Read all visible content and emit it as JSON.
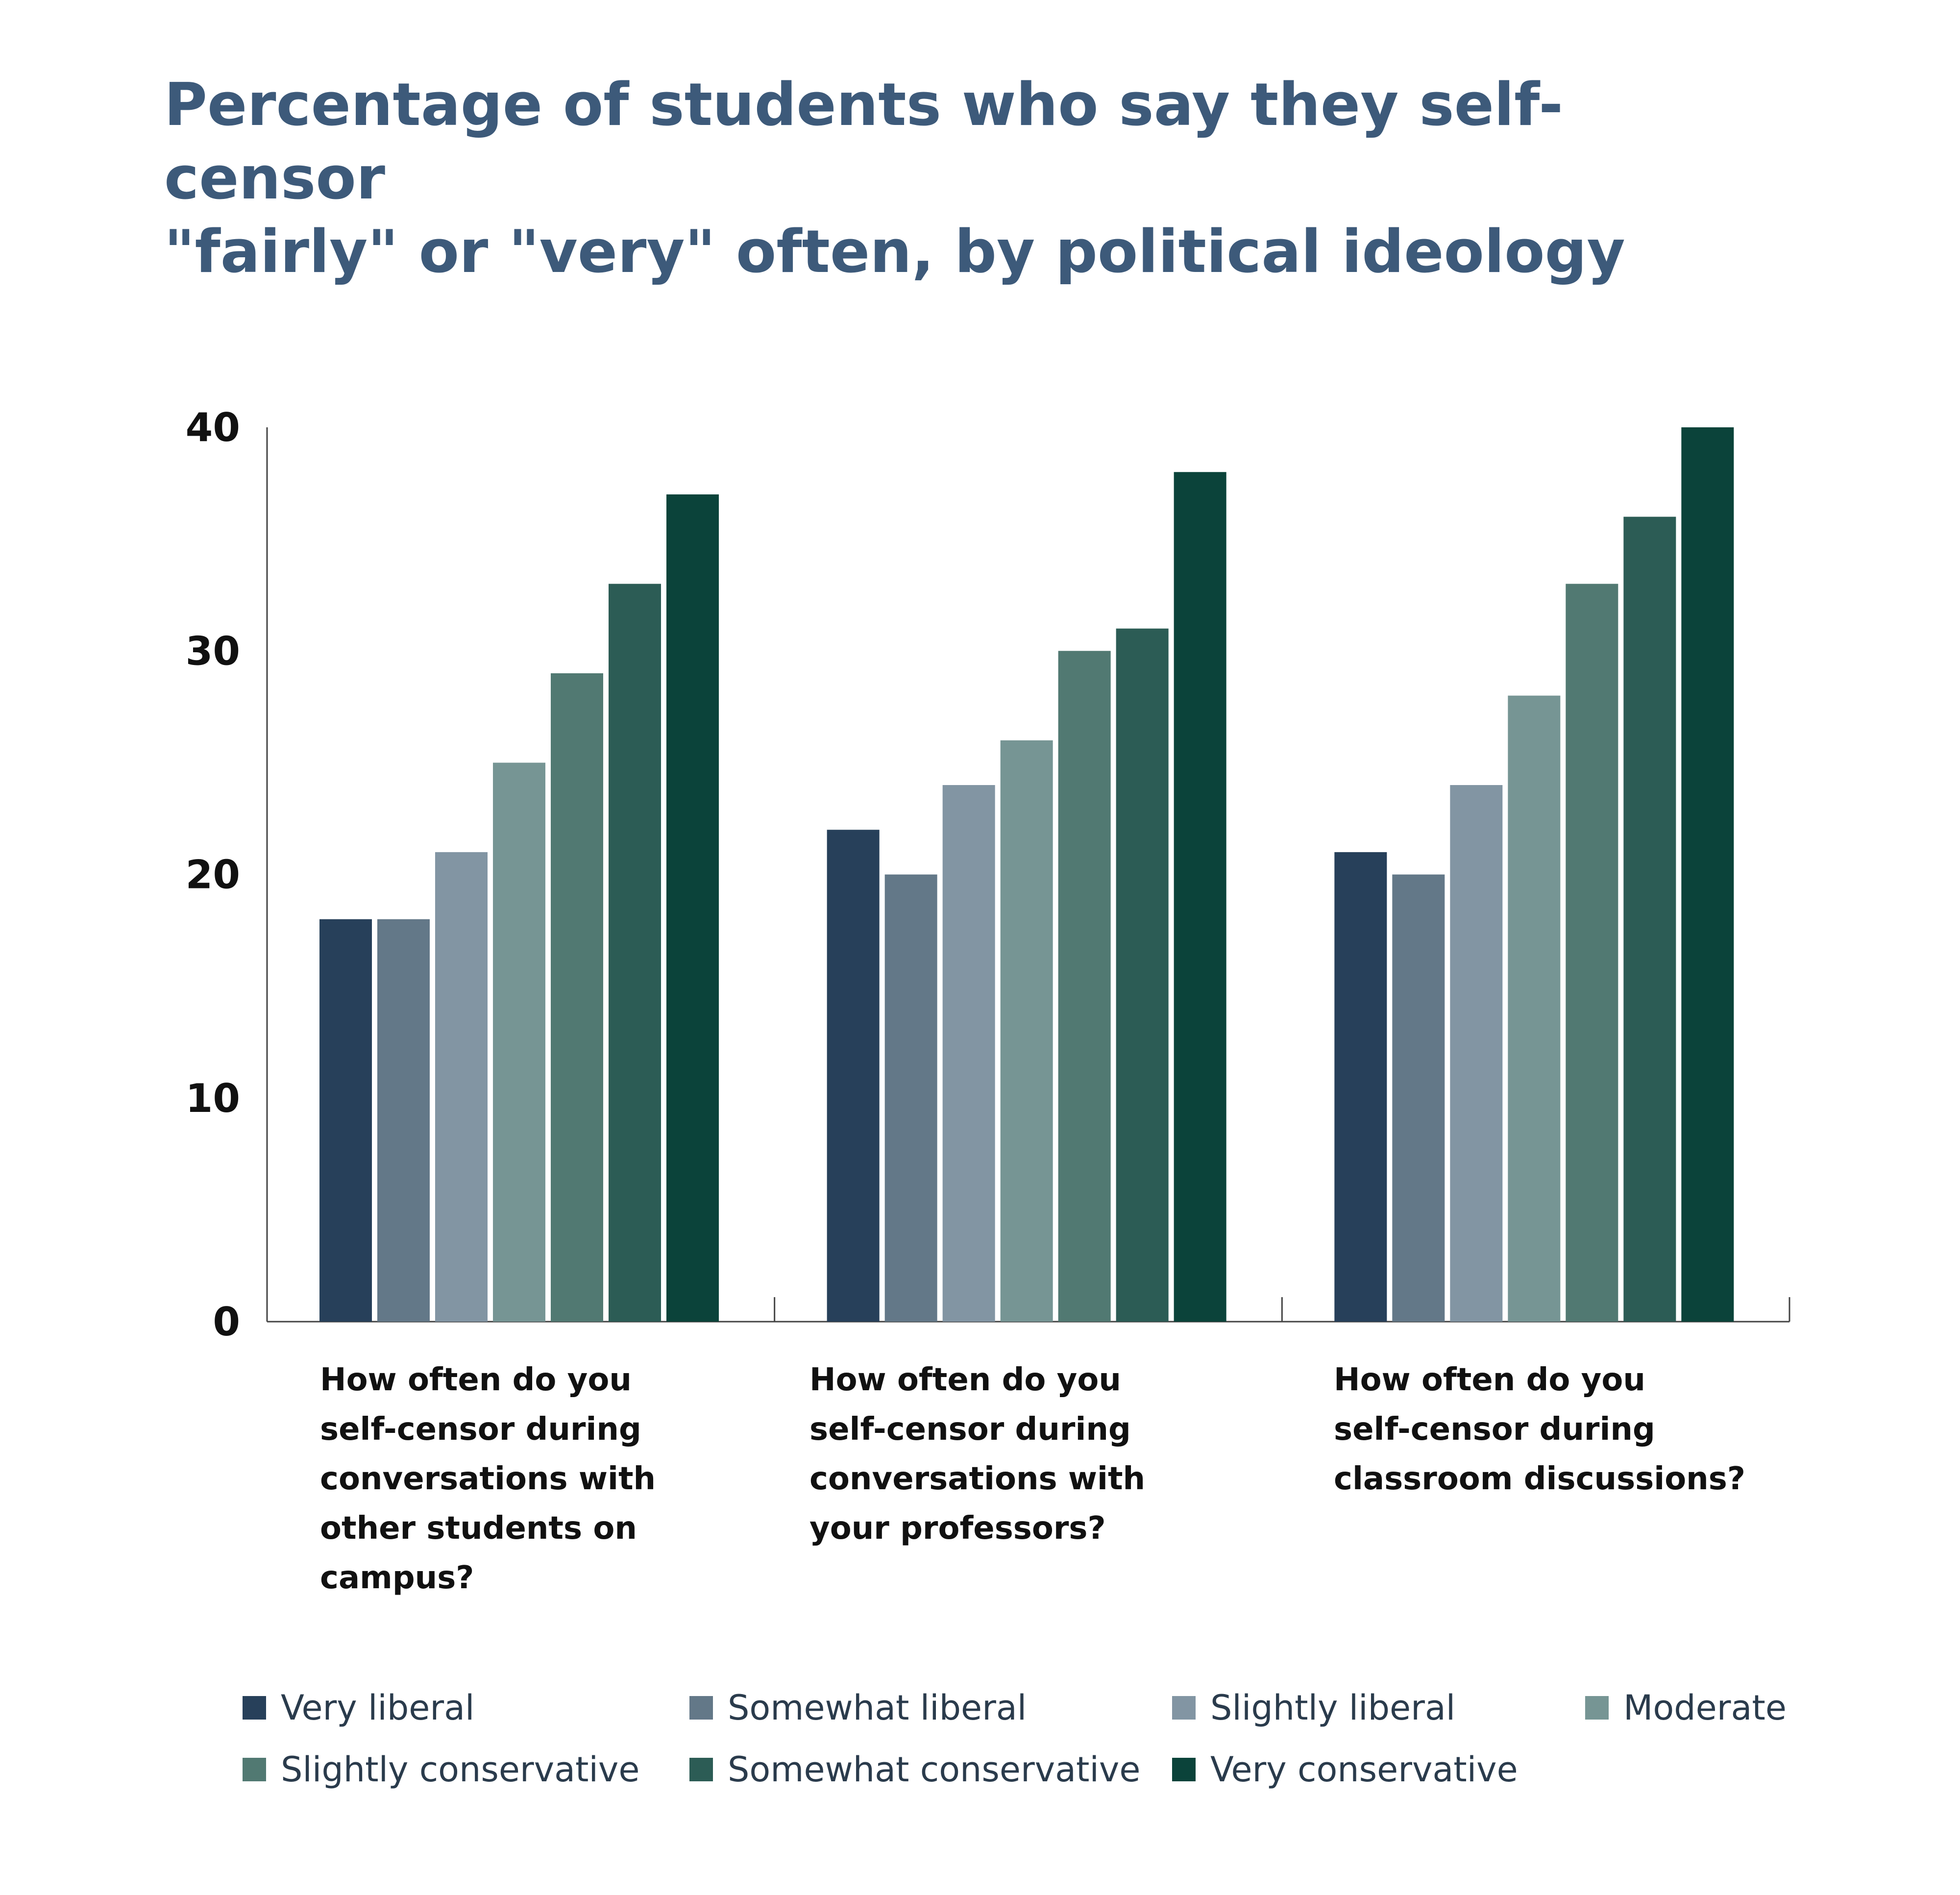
{
  "title_lines": [
    "Percentage of students who say they self-censor",
    "\"fairly\" or \"very\" often, by political ideology"
  ],
  "chart_data": {
    "type": "bar",
    "title": "Percentage of students who say they self-censor \"fairly\" or \"very\" often, by political ideology",
    "xlabel": "",
    "ylabel": "",
    "ylim": [
      0,
      40
    ],
    "yticks": [
      "0",
      "10",
      "20",
      "30",
      "40"
    ],
    "grid": false,
    "legend_position": "bottom",
    "categories": [
      "How often do you self-censor during conversations with other students on campus?",
      "How often do you self-censor during conversations with your professors?",
      "How often do you self-censor during classroom discussions?"
    ],
    "category_label_lines": [
      [
        "How often do you",
        "self-censor during",
        "conversations with",
        "other students on",
        "campus?"
      ],
      [
        "How often do you",
        "self-censor during",
        "conversations with",
        "your professors?"
      ],
      [
        "How often do you",
        "self-censor during",
        "classroom discussions?"
      ]
    ],
    "series": [
      {
        "name": "Very liberal",
        "color": "#27405a",
        "values": [
          18,
          22,
          21
        ]
      },
      {
        "name": "Somewhat liberal",
        "color": "#637888",
        "values": [
          18,
          20,
          20
        ]
      },
      {
        "name": "Slightly liberal",
        "color": "#8295a3",
        "values": [
          21,
          24,
          24
        ]
      },
      {
        "name": "Moderate",
        "color": "#769594",
        "values": [
          25,
          26,
          28
        ]
      },
      {
        "name": "Slightly conservative",
        "color": "#517972",
        "values": [
          29,
          30,
          33
        ]
      },
      {
        "name": "Somewhat conservative",
        "color": "#2c5c55",
        "values": [
          33,
          31,
          36
        ]
      },
      {
        "name": "Very conservative",
        "color": "#0b433a",
        "values": [
          37,
          38,
          40
        ]
      }
    ]
  }
}
